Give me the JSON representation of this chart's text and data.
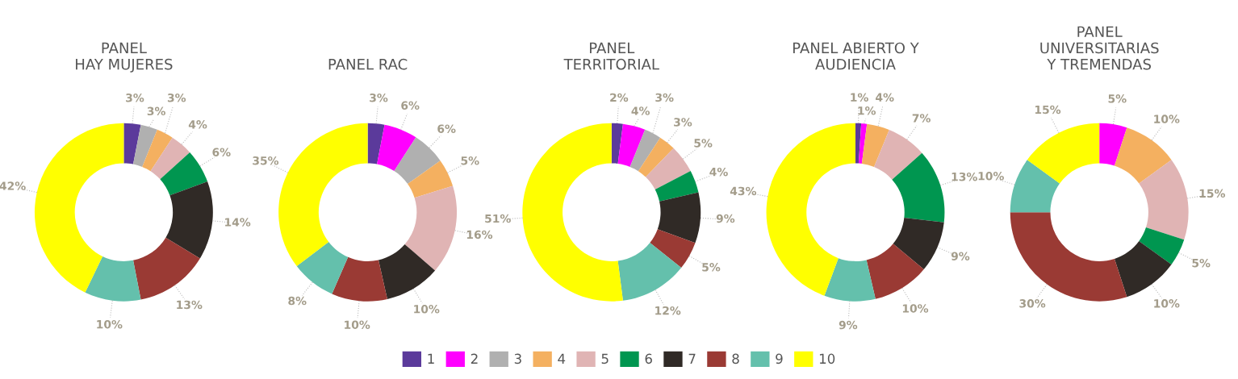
{
  "chart_data": [
    {
      "type": "donut",
      "title": "PANEL\nHAY MUJERES",
      "categories": [
        "1",
        "2",
        "3",
        "4",
        "5",
        "6",
        "7",
        "8",
        "9",
        "10"
      ],
      "values": [
        3,
        null,
        3,
        3,
        4,
        6,
        14,
        13,
        10,
        42
      ],
      "value_labels": [
        "3%",
        null,
        "3%",
        "3%",
        "4%",
        "6%",
        "14%",
        "13%",
        "10%",
        "42%"
      ],
      "colors": [
        "#5b3a9b",
        "#ff00ff",
        "#b0b0b0",
        "#f4b060",
        "#e0b4b4",
        "#009650",
        "#302a26",
        "#9a3a34",
        "#64c0ac",
        "#ffff00"
      ],
      "legend": "bottom"
    },
    {
      "type": "donut",
      "title": "PANEL RAC",
      "categories": [
        null,
        null,
        null,
        null,
        null,
        null,
        null,
        null,
        null,
        null
      ],
      "values": [
        3,
        6,
        6,
        5,
        16,
        null,
        10,
        10,
        8,
        35
      ],
      "value_labels": [
        "3%",
        "6%",
        "6%",
        "5%",
        "16%",
        null,
        "10%",
        "10%",
        "8%",
        "35%"
      ],
      "colors": [
        "#5b3a9b",
        "#ff00ff",
        "#b0b0b0",
        "#f4b060",
        "#e0b4b4",
        "#009650",
        "#302a26",
        "#9a3a34",
        "#64c0ac",
        "#ffff00"
      ]
    },
    {
      "type": "donut",
      "title": "PANEL\nTERRITORIAL",
      "categories": [
        null,
        null,
        null,
        null,
        null,
        null,
        null,
        null,
        null,
        null
      ],
      "values": [
        2,
        4,
        3,
        3,
        5,
        4,
        9,
        5,
        12,
        51
      ],
      "value_labels": [
        "2%",
        "4%",
        "3%",
        "3%",
        "5%",
        "4%",
        "9%",
        "5%",
        "12%",
        "51%"
      ],
      "colors": [
        "#5b3a9b",
        "#ff00ff",
        "#b0b0b0",
        "#f4b060",
        "#e0b4b4",
        "#009650",
        "#302a26",
        "#9a3a34",
        "#64c0ac",
        "#ffff00"
      ]
    },
    {
      "type": "donut",
      "title": "PANEL ABIERTO Y\nAUDIENCIA",
      "categories": [
        null,
        null,
        null,
        null,
        null,
        null,
        null,
        null,
        null,
        null
      ],
      "values": [
        1,
        1,
        null,
        4,
        7,
        13,
        9,
        10,
        9,
        43
      ],
      "value_labels": [
        "1%",
        "1%",
        null,
        "4%",
        "7%",
        "13%",
        "9%",
        "10%",
        "9%",
        "43%"
      ],
      "colors": [
        "#5b3a9b",
        "#ff00ff",
        "#b0b0b0",
        "#f4b060",
        "#e0b4b4",
        "#009650",
        "#302a26",
        "#9a3a34",
        "#64c0ac",
        "#ffff00"
      ]
    },
    {
      "type": "donut",
      "title": "PANEL\nUNIVERSITARIAS\nY TREMENDAS",
      "categories": [
        null,
        null,
        null,
        null,
        null,
        null,
        null,
        null,
        null,
        null
      ],
      "values": [
        null,
        5,
        null,
        10,
        15,
        5,
        10,
        30,
        10,
        15
      ],
      "value_labels": [
        null,
        "5%",
        null,
        "10%",
        "15%",
        "5%",
        "10%",
        "30%",
        "10%",
        "15%"
      ],
      "colors": [
        "#5b3a9b",
        "#ff00ff",
        "#b0b0b0",
        "#f4b060",
        "#e0b4b4",
        "#009650",
        "#302a26",
        "#9a3a34",
        "#64c0ac",
        "#ffff00"
      ]
    }
  ]
}
